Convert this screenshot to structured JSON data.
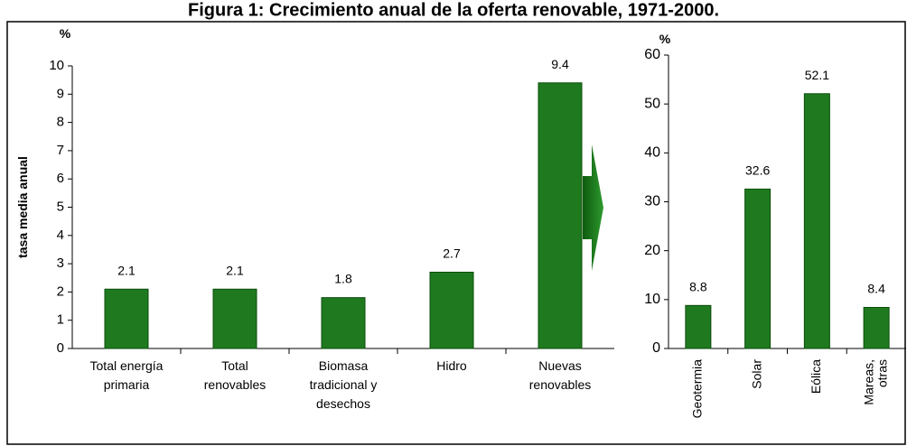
{
  "title": "Figura 1: Crecimiento anual de la oferta renovable, 1971-2000.",
  "chart_data": [
    {
      "type": "bar",
      "ylabel": "tasa media anual",
      "unit": "%",
      "categories": [
        [
          "Total energía",
          "primaria"
        ],
        [
          "Total",
          "renovables"
        ],
        [
          "Biomasa",
          "tradicional y",
          "desechos"
        ],
        [
          "Hidro"
        ],
        [
          "Nuevas",
          "renovables"
        ]
      ],
      "values": [
        2.1,
        2.1,
        1.8,
        2.7,
        9.4
      ],
      "color": "#1f7a1f",
      "ylim": [
        0,
        10
      ],
      "yticks": [
        0,
        1,
        2,
        3,
        4,
        5,
        6,
        7,
        8,
        9,
        10
      ]
    },
    {
      "type": "bar",
      "unit": "%",
      "categories": [
        [
          "Geotermia"
        ],
        [
          "Solar"
        ],
        [
          "Eólica"
        ],
        [
          "Mareas,",
          "otras"
        ]
      ],
      "values": [
        8.8,
        32.6,
        52.1,
        8.4
      ],
      "color": "#1f7a1f",
      "ylim": [
        0,
        60
      ],
      "yticks": [
        0,
        10,
        20,
        30,
        40,
        50,
        60
      ]
    }
  ]
}
